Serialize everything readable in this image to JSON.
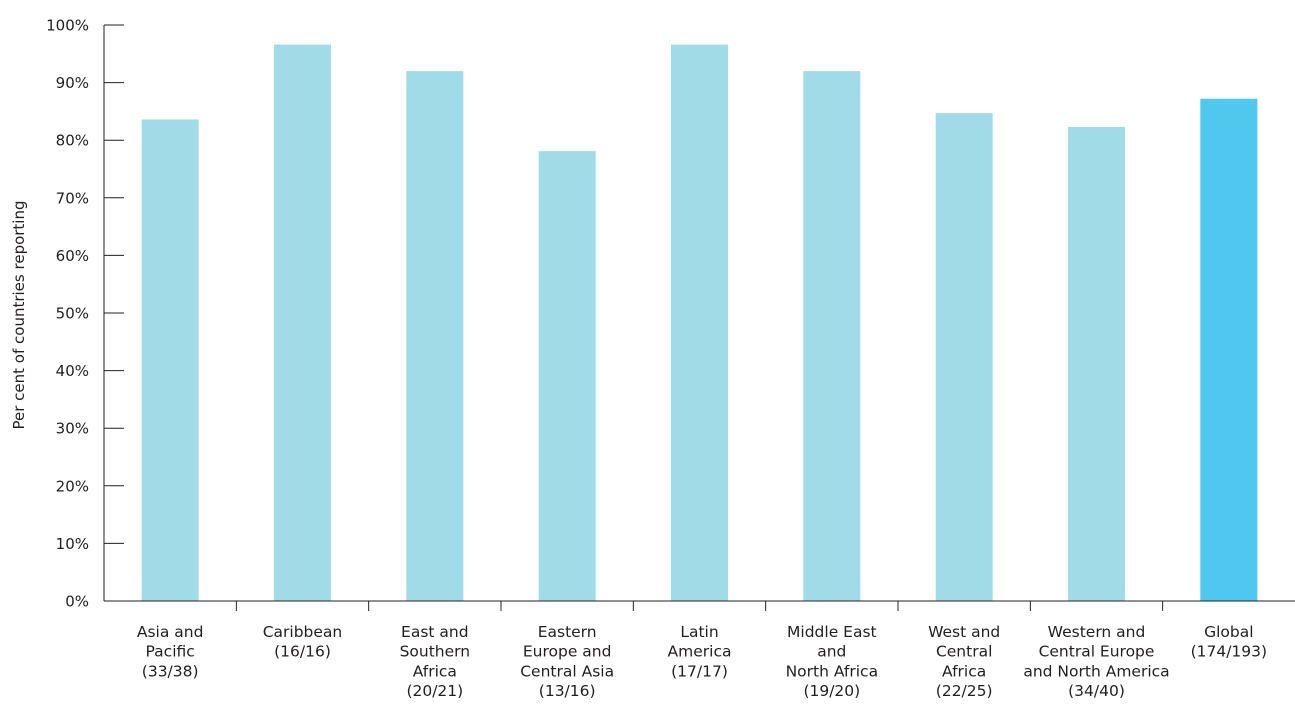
{
  "chart_data": {
    "type": "bar",
    "title": "",
    "xlabel": "",
    "ylabel": "Per cent of countries reporting",
    "ylim": [
      0,
      100
    ],
    "yticks": [
      "0%",
      "10%",
      "20%",
      "30%",
      "40%",
      "50%",
      "60%",
      "70%",
      "80%",
      "90%",
      "100%"
    ],
    "grid": false,
    "legend": "none",
    "categories": [
      [
        "Asia and",
        "Pacific",
        "(33/38)"
      ],
      [
        "Caribbean",
        "(16/16)"
      ],
      [
        "East and",
        "Southern",
        "Africa",
        "(20/21)"
      ],
      [
        "Eastern",
        "Europe and",
        "Central Asia",
        "(13/16)"
      ],
      [
        "Latin",
        "America",
        "(17/17)"
      ],
      [
        "Middle East",
        "and",
        "North Africa",
        "(19/20)"
      ],
      [
        "West and",
        "Central",
        "Africa",
        "(22/25)"
      ],
      [
        "Western and",
        "Central Europe",
        "and North America",
        "(34/40)"
      ],
      [
        "Global",
        "(174/193)"
      ]
    ],
    "values": [
      83.6,
      96.6,
      92.0,
      78.1,
      96.6,
      92.0,
      84.7,
      82.3,
      87.2
    ],
    "colors": {
      "region_bar": "#a1dbe8",
      "global_bar": "#4fc7ee",
      "axis": "#231f20"
    }
  }
}
